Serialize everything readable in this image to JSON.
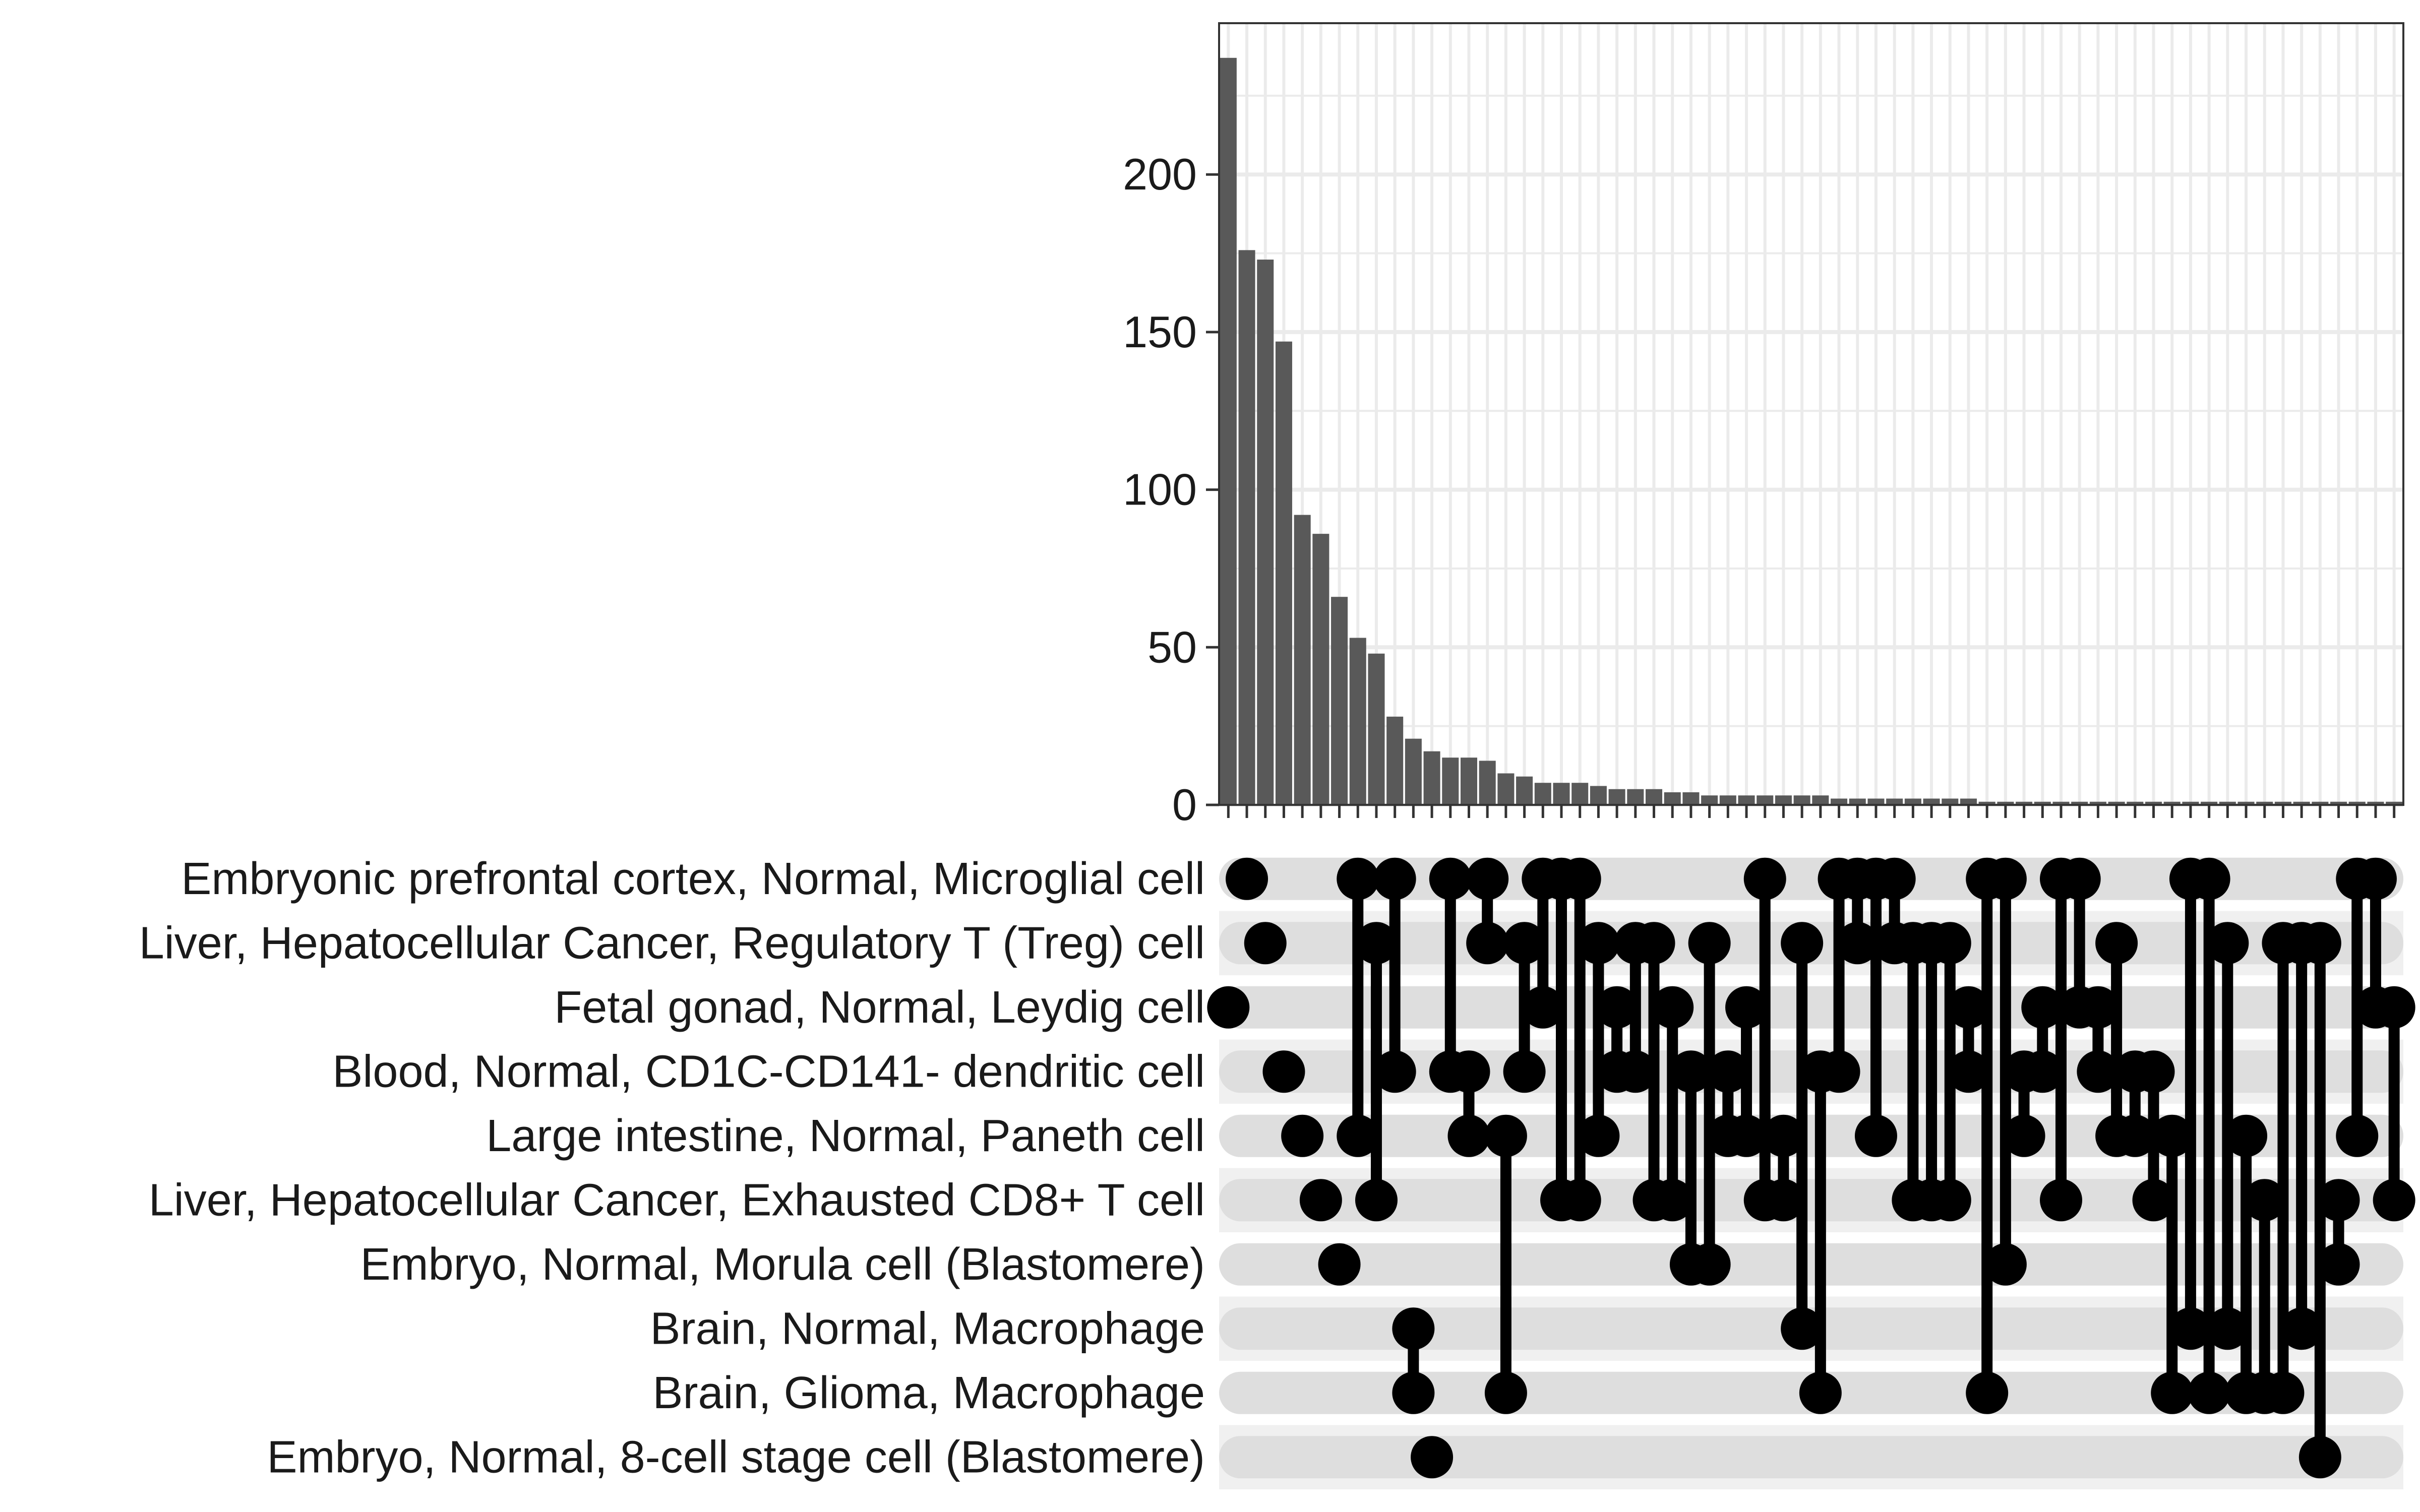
{
  "chart_data": {
    "type": "bar",
    "title": "",
    "xlabel": "",
    "ylabel": "",
    "ylim": [
      0,
      248
    ],
    "yticks": [
      0,
      50,
      100,
      150,
      200
    ],
    "grid": true,
    "legend": "none",
    "colors": {
      "bar": "#595959",
      "dot": "#000000",
      "track_dark": "#dedede",
      "track_light": "#f0f0f0",
      "grid": "#ebebeb",
      "frame": "#333333"
    },
    "sets": [
      "Embryonic prefrontal cortex, Normal, Microglial cell",
      "Liver, Hepatocellular Cancer, Regulatory T (Treg) cell",
      "Fetal gonad, Normal, Leydig cell",
      "Blood, Normal, CD1C-CD141- dendritic cell",
      "Large intestine, Normal, Paneth cell",
      "Liver, Hepatocellular Cancer, Exhausted CD8+ T cell",
      "Embryo, Normal, Morula cell (Blastomere)",
      "Brain, Normal, Macrophage",
      "Brain, Glioma, Macrophage",
      "Embryo, Normal, 8-cell stage cell (Blastomere)"
    ],
    "intersections": [
      {
        "value": 237,
        "sets": [
          2
        ]
      },
      {
        "value": 176,
        "sets": [
          0
        ]
      },
      {
        "value": 173,
        "sets": [
          1
        ]
      },
      {
        "value": 147,
        "sets": [
          3
        ]
      },
      {
        "value": 92,
        "sets": [
          4
        ]
      },
      {
        "value": 86,
        "sets": [
          5
        ]
      },
      {
        "value": 66,
        "sets": [
          6
        ]
      },
      {
        "value": 53,
        "sets": [
          0,
          4
        ]
      },
      {
        "value": 48,
        "sets": [
          1,
          5
        ]
      },
      {
        "value": 28,
        "sets": [
          0,
          3
        ]
      },
      {
        "value": 21,
        "sets": [
          7,
          8
        ]
      },
      {
        "value": 17,
        "sets": [
          9
        ]
      },
      {
        "value": 15,
        "sets": [
          0,
          3
        ]
      },
      {
        "value": 15,
        "sets": [
          3,
          4
        ]
      },
      {
        "value": 14,
        "sets": [
          0,
          1
        ]
      },
      {
        "value": 10,
        "sets": [
          4,
          8
        ]
      },
      {
        "value": 9,
        "sets": [
          1,
          3
        ]
      },
      {
        "value": 7,
        "sets": [
          0,
          2
        ]
      },
      {
        "value": 7,
        "sets": [
          0,
          5
        ]
      },
      {
        "value": 7,
        "sets": [
          0,
          5
        ]
      },
      {
        "value": 6,
        "sets": [
          1,
          4
        ]
      },
      {
        "value": 5,
        "sets": [
          2,
          3
        ]
      },
      {
        "value": 5,
        "sets": [
          1,
          3
        ]
      },
      {
        "value": 5,
        "sets": [
          1,
          5
        ]
      },
      {
        "value": 4,
        "sets": [
          2,
          5
        ]
      },
      {
        "value": 4,
        "sets": [
          3,
          6
        ]
      },
      {
        "value": 3,
        "sets": [
          1,
          6
        ]
      },
      {
        "value": 3,
        "sets": [
          3,
          4
        ]
      },
      {
        "value": 3,
        "sets": [
          2,
          4
        ]
      },
      {
        "value": 3,
        "sets": [
          0,
          5
        ]
      },
      {
        "value": 3,
        "sets": [
          4,
          5
        ]
      },
      {
        "value": 3,
        "sets": [
          1,
          7
        ]
      },
      {
        "value": 3,
        "sets": [
          3,
          8
        ]
      },
      {
        "value": 2,
        "sets": [
          0,
          3
        ]
      },
      {
        "value": 2,
        "sets": [
          0,
          1
        ]
      },
      {
        "value": 2,
        "sets": [
          0,
          4
        ]
      },
      {
        "value": 2,
        "sets": [
          0,
          1
        ]
      },
      {
        "value": 2,
        "sets": [
          1,
          5
        ]
      },
      {
        "value": 2,
        "sets": [
          1,
          5
        ]
      },
      {
        "value": 2,
        "sets": [
          1,
          5
        ]
      },
      {
        "value": 2,
        "sets": [
          2,
          3
        ]
      },
      {
        "value": 1,
        "sets": [
          0,
          8
        ]
      },
      {
        "value": 1,
        "sets": [
          0,
          6
        ]
      },
      {
        "value": 1,
        "sets": [
          3,
          4
        ]
      },
      {
        "value": 1,
        "sets": [
          2,
          3
        ]
      },
      {
        "value": 1,
        "sets": [
          0,
          5
        ]
      },
      {
        "value": 1,
        "sets": [
          0,
          2
        ]
      },
      {
        "value": 1,
        "sets": [
          2,
          3
        ]
      },
      {
        "value": 1,
        "sets": [
          1,
          4
        ]
      },
      {
        "value": 1,
        "sets": [
          3,
          4
        ]
      },
      {
        "value": 1,
        "sets": [
          3,
          5
        ]
      },
      {
        "value": 1,
        "sets": [
          4,
          8
        ]
      },
      {
        "value": 1,
        "sets": [
          0,
          7
        ]
      },
      {
        "value": 1,
        "sets": [
          0,
          8
        ]
      },
      {
        "value": 1,
        "sets": [
          1,
          7
        ]
      },
      {
        "value": 1,
        "sets": [
          4,
          8
        ]
      },
      {
        "value": 1,
        "sets": [
          5,
          8
        ]
      },
      {
        "value": 1,
        "sets": [
          1,
          8
        ]
      },
      {
        "value": 1,
        "sets": [
          1,
          7
        ]
      },
      {
        "value": 1,
        "sets": [
          1,
          9
        ]
      },
      {
        "value": 1,
        "sets": [
          5,
          6
        ]
      },
      {
        "value": 1,
        "sets": [
          0,
          4
        ]
      },
      {
        "value": 1,
        "sets": [
          0,
          2
        ]
      },
      {
        "value": 1,
        "sets": [
          2,
          5
        ]
      }
    ]
  }
}
